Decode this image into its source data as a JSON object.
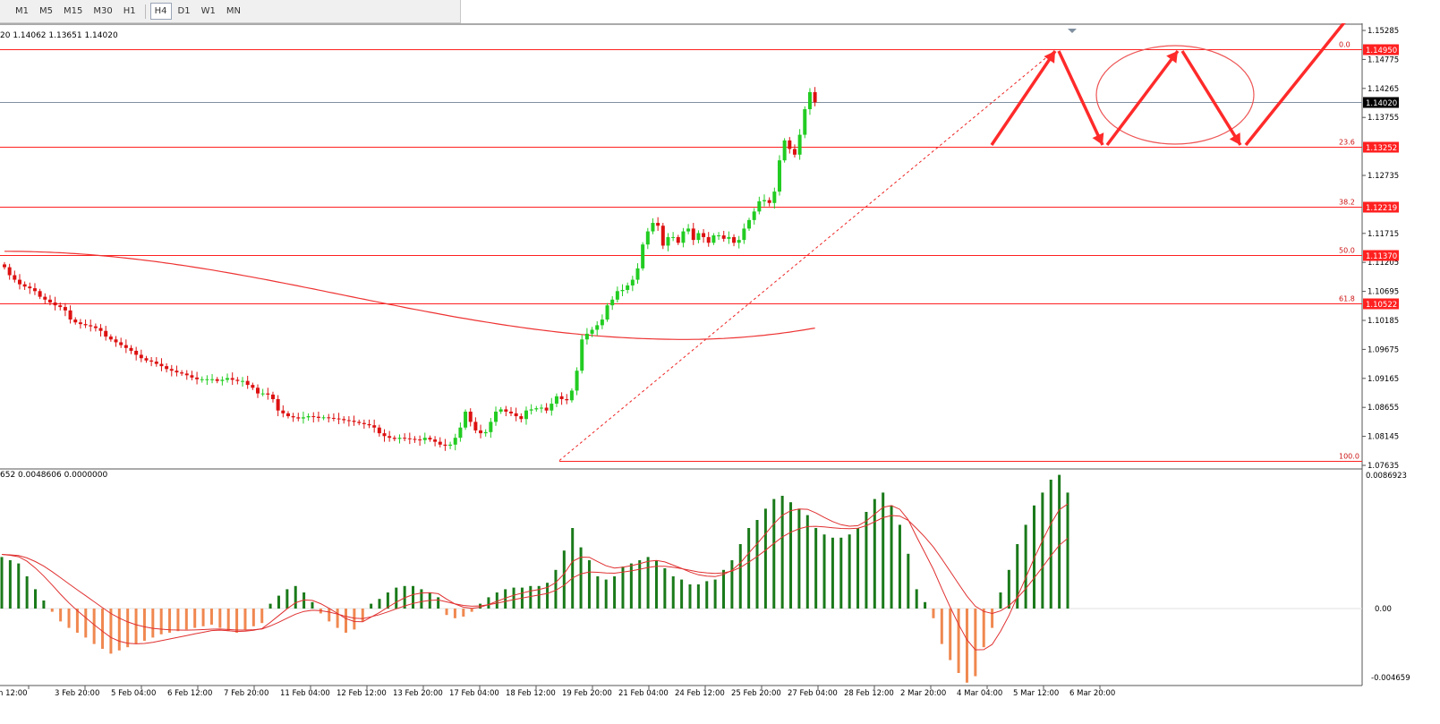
{
  "toolbar": {
    "timeframes": [
      "M1",
      "M5",
      "M15",
      "M30",
      "H1",
      "H4",
      "D1",
      "W1",
      "MN"
    ],
    "active": "H4"
  },
  "price_info": "20 1.14062 1.13651 1.14020",
  "indicator_info": "652 0.0048606 0.0000000",
  "price_axis": {
    "ticks": [
      "1.15285",
      "1.14775",
      "1.14265",
      "1.13755",
      "1.12735",
      "1.11715",
      "1.11205",
      "1.10695",
      "1.10185",
      "1.09675",
      "1.09165",
      "1.08655",
      "1.08145",
      "1.07635"
    ],
    "current_price": "1.14020",
    "fib_levels": [
      {
        "ratio": "0.0",
        "price": "1.14950"
      },
      {
        "ratio": "23.6",
        "price": "1.13252"
      },
      {
        "ratio": "38.2",
        "price": "1.12219"
      },
      {
        "ratio": "50.0",
        "price": "1.11370"
      },
      {
        "ratio": "61.8",
        "price": "1.10522"
      },
      {
        "ratio": "100.0",
        "price": ""
      }
    ]
  },
  "indicator_axis": {
    "ticks": [
      "0.0086923",
      "0.00",
      "-0.004659"
    ]
  },
  "time_axis": {
    "labels": [
      "n 12:00",
      "3 Feb 20:00",
      "5 Feb 04:00",
      "6 Feb 12:00",
      "7 Feb 20:00",
      "11 Feb 04:00",
      "12 Feb 12:00",
      "13 Feb 20:00",
      "17 Feb 04:00",
      "18 Feb 12:00",
      "19 Feb 20:00",
      "21 Feb 04:00",
      "24 Feb 12:00",
      "25 Feb 20:00",
      "27 Feb 04:00",
      "28 Feb 12:00",
      "2 Mar 20:00",
      "4 Mar 04:00",
      "5 Mar 12:00",
      "6 Mar 20:00"
    ]
  },
  "colors": {
    "bull": "#22cc22",
    "bear": "#dd1111",
    "level": "#ff2020",
    "fibText": "#cc1111",
    "accent": "#ff2a2a",
    "histPos": "#1a7a1a",
    "histNeg": "#f08850",
    "grid": "#cfcfcf"
  },
  "chart_data": {
    "type": "candlestick",
    "closes": [
      1.1112,
      1.1098,
      1.109,
      1.1082,
      1.1078,
      1.1075,
      1.107,
      1.106,
      1.1055,
      1.105,
      1.1045,
      1.1042,
      1.1036,
      1.102,
      1.1015,
      1.1012,
      1.101,
      1.1008,
      1.1005,
      1.1,
      1.099,
      1.0985,
      1.098,
      1.0975,
      1.097,
      1.0965,
      1.0958,
      1.0952,
      1.0948,
      1.0946,
      1.0942,
      1.0938,
      1.0933,
      1.093,
      1.0927,
      1.0925,
      1.0922,
      1.0918,
      1.0915,
      1.0915,
      1.0915,
      1.0915,
      1.0912,
      1.0914,
      1.0917,
      1.0914,
      1.0912,
      1.0912,
      1.0905,
      1.09,
      1.089,
      1.089,
      1.0888,
      1.088,
      1.086,
      1.0855,
      1.085,
      1.0848,
      1.0846,
      1.0848,
      1.085,
      1.0849,
      1.0847,
      1.0848,
      1.0847,
      1.0846,
      1.0845,
      1.0843,
      1.0842,
      1.084,
      1.0838,
      1.0836,
      1.0834,
      1.083,
      1.082,
      1.0815,
      1.0812,
      1.081,
      1.0812,
      1.0811,
      1.081,
      1.0809,
      1.0808,
      1.0812,
      1.0809,
      1.0805,
      1.08,
      1.0798,
      1.08,
      1.0812,
      1.083,
      1.0858,
      1.084,
      1.0825,
      1.082,
      1.0822,
      1.084,
      1.0858,
      1.0862,
      1.0858,
      1.0855,
      1.085,
      1.0845,
      1.086,
      1.0862,
      1.0864,
      1.0865,
      1.086,
      1.0872,
      1.0885,
      1.088,
      1.0878,
      1.0895,
      1.093,
      1.0985,
      1.0995,
      1.1002,
      1.101,
      1.102,
      1.1045,
      1.1055,
      1.107,
      1.1072,
      1.108,
      1.109,
      1.111,
      1.1152,
      1.1175,
      1.119,
      1.1185,
      1.115,
      1.1165,
      1.1165,
      1.1155,
      1.1175,
      1.118,
      1.116,
      1.1172,
      1.1165,
      1.1155,
      1.1168,
      1.1168,
      1.1162,
      1.1165,
      1.1155,
      1.116,
      1.118,
      1.1195,
      1.121,
      1.1228,
      1.123,
      1.1225,
      1.1245,
      1.13,
      1.1335,
      1.132,
      1.131,
      1.1345,
      1.139,
      1.142,
      1.1402
    ],
    "ma": {
      "start": 1.114,
      "mid": 1.0985,
      "end": 1.1005
    },
    "fib": {
      "high": 1.1495,
      "low": 1.0772
    },
    "projection_arrows": "zigzag",
    "macd_hist": [
      0.0032,
      0.003,
      0.0028,
      0.002,
      0.0012,
      0.0005,
      -0.0002,
      -0.0008,
      -0.0012,
      -0.0015,
      -0.0018,
      -0.0022,
      -0.0025,
      -0.0028,
      -0.0026,
      -0.0024,
      -0.0022,
      -0.002,
      -0.0018,
      -0.0016,
      -0.0015,
      -0.0014,
      -0.0013,
      -0.0012,
      -0.0011,
      -0.001,
      -0.0012,
      -0.0014,
      -0.0015,
      -0.0013,
      -0.0011,
      -0.0009,
      0.0003,
      0.0008,
      0.0012,
      0.0014,
      0.001,
      0.0004,
      -0.0003,
      -0.0008,
      -0.0012,
      -0.0015,
      -0.0013,
      -0.0008,
      0.0003,
      0.0006,
      0.001,
      0.0013,
      0.0014,
      0.0014,
      0.0012,
      0.001,
      0.0007,
      -0.0004,
      -0.0006,
      -0.0005,
      -0.0002,
      0.0003,
      0.0007,
      0.001,
      0.0012,
      0.0013,
      0.0013,
      0.0014,
      0.0014,
      0.0016,
      0.0024,
      0.0036,
      0.005,
      0.0038,
      0.003,
      0.002,
      0.0018,
      0.002,
      0.0026,
      0.0028,
      0.003,
      0.0032,
      0.003,
      0.0025,
      0.002,
      0.0018,
      0.0015,
      0.0015,
      0.0017,
      0.0018,
      0.0024,
      0.003,
      0.004,
      0.005,
      0.0055,
      0.0062,
      0.0068,
      0.007,
      0.0066,
      0.0062,
      0.0058,
      0.005,
      0.0046,
      0.0044,
      0.0044,
      0.0046,
      0.005,
      0.006,
      0.0068,
      0.0072,
      0.0064,
      0.0052,
      0.0034,
      0.0012,
      0.0004,
      -0.0006,
      -0.0022,
      -0.0032,
      -0.004,
      -0.0046,
      -0.0042,
      -0.0024,
      -0.0012,
      0.001,
      0.0024,
      0.004,
      0.0052,
      0.0064,
      0.0072,
      0.008,
      0.0083,
      0.0072
    ]
  }
}
